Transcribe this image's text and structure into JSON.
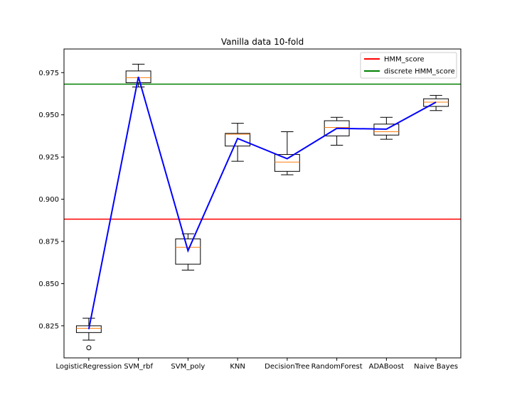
{
  "chart_data": {
    "type": "box",
    "title": "Vanilla data 10-fold",
    "xlabel": "",
    "ylabel": "",
    "ylim": [
      0.806,
      0.989
    ],
    "yticks": [
      0.825,
      0.85,
      0.875,
      0.9,
      0.925,
      0.95,
      0.975
    ],
    "ytick_labels": [
      "0.825",
      "0.850",
      "0.875",
      "0.900",
      "0.925",
      "0.950",
      "0.975"
    ],
    "categories": [
      "LogisticRegression",
      "SVM_rbf",
      "SVM_poly",
      "KNN",
      "DecisionTree",
      "RandomForest",
      "ADABoost",
      "Naive Bayes"
    ],
    "boxes": [
      {
        "whisker_low": 0.8165,
        "q1": 0.821,
        "median": 0.8235,
        "q3": 0.825,
        "whisker_high": 0.8295,
        "fliers": [
          0.812
        ]
      },
      {
        "whisker_low": 0.9665,
        "q1": 0.969,
        "median": 0.972,
        "q3": 0.976,
        "whisker_high": 0.98,
        "fliers": []
      },
      {
        "whisker_low": 0.858,
        "q1": 0.8615,
        "median": 0.8715,
        "q3": 0.8765,
        "whisker_high": 0.8795,
        "fliers": []
      },
      {
        "whisker_low": 0.9225,
        "q1": 0.9315,
        "median": 0.9385,
        "q3": 0.939,
        "whisker_high": 0.945,
        "fliers": []
      },
      {
        "whisker_low": 0.9145,
        "q1": 0.9165,
        "median": 0.922,
        "q3": 0.9265,
        "whisker_high": 0.94,
        "fliers": []
      },
      {
        "whisker_low": 0.932,
        "q1": 0.9375,
        "median": 0.9425,
        "q3": 0.9465,
        "whisker_high": 0.9485,
        "fliers": []
      },
      {
        "whisker_low": 0.9355,
        "q1": 0.938,
        "median": 0.94,
        "q3": 0.9445,
        "whisker_high": 0.9485,
        "fliers": []
      },
      {
        "whisker_low": 0.9525,
        "q1": 0.955,
        "median": 0.9575,
        "q3": 0.9595,
        "whisker_high": 0.9615,
        "fliers": []
      }
    ],
    "mean_line": {
      "color": "#0000ff",
      "values": [
        0.823,
        0.9725,
        0.8695,
        0.936,
        0.924,
        0.942,
        0.9415,
        0.9575
      ]
    },
    "hlines": [
      {
        "name": "HMM_score",
        "value": 0.8882,
        "color": "#ff0000"
      },
      {
        "name": "discrete HMM_score",
        "value": 0.9682,
        "color": "#008000"
      }
    ],
    "legend": {
      "placement": "upper right",
      "entries": [
        "HMM_score",
        "discrete HMM_score"
      ]
    },
    "colors": {
      "box": "#000000",
      "median": "#ff7f0e"
    },
    "grid": false
  }
}
